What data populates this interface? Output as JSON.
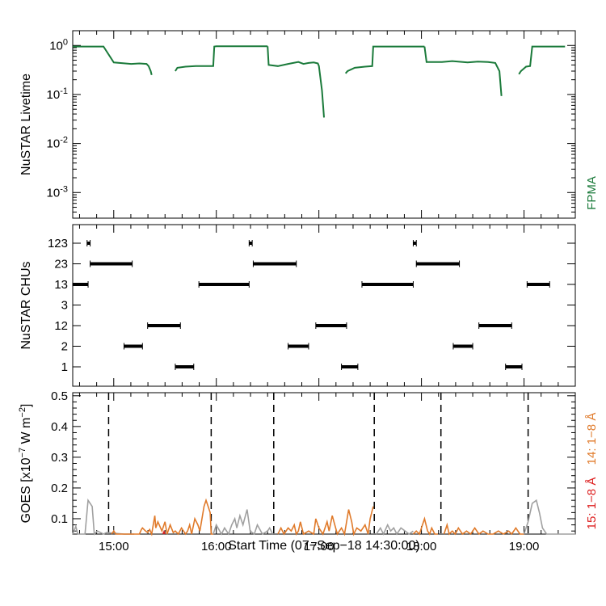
{
  "chart_data": [
    {
      "type": "line",
      "name": "livetime",
      "ylabel": "NuSTAR Livetime",
      "yscale": "log",
      "ylim": [
        0.0003,
        2
      ],
      "xlim": [
        14.6,
        19.5
      ],
      "yticks": [
        {
          "v": 1,
          "base": "10",
          "exp": "0"
        },
        {
          "v": 0.1,
          "base": "10",
          "exp": "-1"
        },
        {
          "v": 0.01,
          "base": "10",
          "exp": "-2"
        },
        {
          "v": 0.001,
          "base": "10",
          "exp": "-3"
        }
      ],
      "legend": "FPMA",
      "colors": {
        "series": "#1a7a3a"
      },
      "segments": [
        {
          "x": [
            14.6,
            14.9,
            14.9,
            15.0,
            15.17,
            15.25,
            15.32,
            15.34,
            15.36,
            15.37
          ],
          "y": [
            0.95,
            0.95,
            0.95,
            0.45,
            0.42,
            0.43,
            0.42,
            0.38,
            0.3,
            0.25
          ]
        },
        {
          "x": [
            15.6,
            15.62,
            15.7,
            15.8,
            15.9,
            15.97,
            15.98,
            16.0,
            16.4,
            16.5
          ],
          "y": [
            0.3,
            0.35,
            0.37,
            0.38,
            0.38,
            0.38,
            0.95,
            0.96,
            0.96,
            0.96
          ]
        },
        {
          "x": [
            16.5,
            16.51,
            16.6,
            16.7,
            16.8,
            16.85,
            16.9,
            16.95,
            16.99,
            17.0,
            17.03,
            17.05
          ],
          "y": [
            0.96,
            0.4,
            0.38,
            0.42,
            0.46,
            0.42,
            0.44,
            0.45,
            0.43,
            0.38,
            0.12,
            0.034
          ]
        },
        {
          "x": [
            17.26,
            17.28,
            17.35,
            17.45,
            17.52,
            17.53,
            17.6,
            18.0,
            18.03
          ],
          "y": [
            0.27,
            0.3,
            0.35,
            0.37,
            0.38,
            0.95,
            0.95,
            0.95,
            0.95
          ]
        },
        {
          "x": [
            18.03,
            18.05,
            18.2,
            18.3,
            18.45,
            18.55,
            18.65,
            18.72,
            18.76,
            18.78
          ],
          "y": [
            0.95,
            0.46,
            0.46,
            0.48,
            0.45,
            0.47,
            0.46,
            0.44,
            0.3,
            0.093
          ]
        },
        {
          "x": [
            18.95,
            18.97,
            19.02,
            19.06,
            19.08,
            19.1,
            19.4
          ],
          "y": [
            0.26,
            0.3,
            0.37,
            0.38,
            0.95,
            0.95,
            0.95
          ]
        }
      ]
    },
    {
      "type": "scatter",
      "name": "chus",
      "ylabel": "NuSTAR CHUs",
      "categories": [
        "1",
        "2",
        "12",
        "3",
        "13",
        "23",
        "123"
      ],
      "colors": {
        "series": "#000000"
      },
      "runs": [
        {
          "cat": "13",
          "x0": 14.6,
          "x1": 14.75
        },
        {
          "cat": "123",
          "x0": 14.74,
          "x1": 14.77
        },
        {
          "cat": "23",
          "x0": 14.77,
          "x1": 15.18
        },
        {
          "cat": "2",
          "x0": 15.1,
          "x1": 15.28
        },
        {
          "cat": "12",
          "x0": 15.33,
          "x1": 15.65
        },
        {
          "cat": "1",
          "x0": 15.6,
          "x1": 15.78
        },
        {
          "cat": "13",
          "x0": 15.83,
          "x1": 16.32
        },
        {
          "cat": "123",
          "x0": 16.32,
          "x1": 16.35
        },
        {
          "cat": "23",
          "x0": 16.36,
          "x1": 16.78
        },
        {
          "cat": "2",
          "x0": 16.7,
          "x1": 16.9
        },
        {
          "cat": "12",
          "x0": 16.97,
          "x1": 17.27
        },
        {
          "cat": "1",
          "x0": 17.22,
          "x1": 17.38
        },
        {
          "cat": "13",
          "x0": 17.42,
          "x1": 17.92
        },
        {
          "cat": "123",
          "x0": 17.92,
          "x1": 17.95
        },
        {
          "cat": "23",
          "x0": 17.95,
          "x1": 18.37
        },
        {
          "cat": "2",
          "x0": 18.31,
          "x1": 18.5
        },
        {
          "cat": "12",
          "x0": 18.56,
          "x1": 18.88
        },
        {
          "cat": "1",
          "x0": 18.82,
          "x1": 18.98
        },
        {
          "cat": "13",
          "x0": 19.03,
          "x1": 19.25
        }
      ]
    },
    {
      "type": "line",
      "name": "goes",
      "ylabel": "GOES [x10",
      "ylabel_exp": "−7",
      "ylabel_tail": " W m",
      "ylabel_exp2": "−2",
      "ylabel_close": "]",
      "ylim": [
        0.05,
        0.51
      ],
      "yticks": [
        "0.1",
        "0.2",
        "0.3",
        "0.4",
        "0.5"
      ],
      "legend": [
        "14: 1−8 Å",
        "15: 1−8 Å"
      ],
      "colors": {
        "goes14": "#e07a2a",
        "goes15": "#dd2020",
        "quiet": "#a0a0a0",
        "markers": "#000000"
      },
      "vlines": [
        14.95,
        15.95,
        16.56,
        17.54,
        18.19,
        19.04
      ],
      "series": [
        {
          "name": "quiet",
          "color": "#a0a0a0",
          "x": [
            14.6,
            14.63,
            14.65,
            14.67,
            14.72,
            14.75,
            14.79,
            14.81,
            14.84,
            14.9,
            14.93,
            15.1,
            15.2
          ],
          "y": [
            0.05,
            0.075,
            0.05,
            0.05,
            0.05,
            0.16,
            0.14,
            0.05,
            0.06,
            0.05,
            0.055,
            0.05,
            0.05
          ]
        },
        {
          "name": "goes14",
          "color": "#e07a2a",
          "x": [
            14.98,
            15.0,
            15.02,
            15.04,
            15.25,
            15.27,
            15.28,
            15.31,
            15.33,
            15.35,
            15.37,
            15.38,
            15.4,
            15.41,
            15.43,
            15.47,
            15.5,
            15.52,
            15.55,
            15.58,
            15.6,
            15.63,
            15.66,
            15.7,
            15.72,
            15.74,
            15.76,
            15.79,
            15.82,
            15.84,
            15.88,
            15.9,
            15.92,
            15.94,
            15.95,
            15.97
          ],
          "y": [
            0.05,
            0.06,
            0.05,
            0.05,
            0.05,
            0.065,
            0.07,
            0.06,
            0.055,
            0.065,
            0.05,
            0.07,
            0.11,
            0.07,
            0.09,
            0.06,
            0.09,
            0.05,
            0.08,
            0.055,
            0.06,
            0.05,
            0.07,
            0.05,
            0.06,
            0.08,
            0.05,
            0.1,
            0.08,
            0.06,
            0.14,
            0.16,
            0.14,
            0.12,
            0.05,
            0.05
          ]
        },
        {
          "name": "goes15",
          "color": "#dd2020",
          "x": [
            15.48,
            15.49,
            15.5
          ],
          "y": [
            0.05,
            0.058,
            0.05
          ]
        },
        {
          "name": "quiet",
          "color": "#a0a0a0",
          "x": [
            15.97,
            16.0,
            16.05,
            16.08,
            16.12,
            16.15,
            16.18,
            16.2,
            16.23,
            16.26,
            16.3,
            16.33,
            16.37,
            16.4,
            16.45,
            16.5,
            16.52,
            16.55
          ],
          "y": [
            0.05,
            0.08,
            0.05,
            0.07,
            0.05,
            0.08,
            0.1,
            0.07,
            0.11,
            0.08,
            0.13,
            0.06,
            0.05,
            0.08,
            0.05,
            0.06,
            0.07,
            0.05
          ]
        },
        {
          "name": "goes14",
          "color": "#e07a2a",
          "x": [
            16.6,
            16.63,
            16.66,
            16.7,
            16.73,
            16.76,
            16.78,
            16.8,
            16.82,
            16.85,
            16.9,
            16.95,
            16.97,
            17.0,
            17.04,
            17.08,
            17.1,
            17.13,
            17.18,
            17.22,
            17.25,
            17.29,
            17.32,
            17.34,
            17.37,
            17.41,
            17.45,
            17.48,
            17.5,
            17.53
          ],
          "y": [
            0.05,
            0.07,
            0.05,
            0.07,
            0.06,
            0.08,
            0.05,
            0.06,
            0.09,
            0.05,
            0.06,
            0.05,
            0.1,
            0.07,
            0.05,
            0.09,
            0.06,
            0.11,
            0.05,
            0.07,
            0.05,
            0.13,
            0.09,
            0.05,
            0.07,
            0.06,
            0.08,
            0.05,
            0.1,
            0.14
          ]
        },
        {
          "name": "quiet",
          "color": "#a0a0a0",
          "x": [
            17.56,
            17.6,
            17.63,
            17.67,
            17.7,
            17.73,
            17.76,
            17.8,
            17.84,
            17.88,
            17.92
          ],
          "y": [
            0.05,
            0.07,
            0.05,
            0.08,
            0.06,
            0.07,
            0.05,
            0.07,
            0.06,
            0.05,
            0.06
          ]
        },
        {
          "name": "goes14",
          "color": "#e07a2a",
          "x": [
            17.92,
            17.95,
            17.98,
            18.0,
            18.03,
            18.06,
            18.08,
            18.1,
            18.13,
            18.16
          ],
          "y": [
            0.05,
            0.06,
            0.05,
            0.07,
            0.1,
            0.06,
            0.05,
            0.07,
            0.05,
            0.05
          ]
        },
        {
          "name": "goes14",
          "color": "#e07a2a",
          "x": [
            18.22,
            18.25,
            18.27,
            18.3,
            18.33,
            18.36,
            18.4,
            18.44,
            18.48,
            18.52,
            18.56,
            18.6,
            18.65,
            18.7,
            18.75,
            18.8,
            18.85,
            18.88,
            18.92,
            18.96,
            19.0
          ],
          "y": [
            0.05,
            0.08,
            0.05,
            0.06,
            0.05,
            0.07,
            0.05,
            0.06,
            0.05,
            0.07,
            0.05,
            0.06,
            0.05,
            0.05,
            0.06,
            0.05,
            0.06,
            0.05,
            0.07,
            0.05,
            0.05
          ]
        },
        {
          "name": "quiet",
          "color": "#a0a0a0",
          "x": [
            19.0,
            19.04,
            19.08,
            19.12,
            19.15,
            19.18,
            19.22,
            19.3,
            19.4,
            19.5
          ],
          "y": [
            0.05,
            0.09,
            0.15,
            0.16,
            0.12,
            0.07,
            0.05,
            0.05,
            0.05,
            0.05
          ]
        }
      ]
    }
  ],
  "xaxis": {
    "label": "Start Time (07−Sep−18 14:30:00)",
    "ticks": [
      {
        "v": 15,
        "t": "15:00"
      },
      {
        "v": 16,
        "t": "16:00"
      },
      {
        "v": 17,
        "t": "17:00"
      },
      {
        "v": 18,
        "t": "18:00"
      },
      {
        "v": 19,
        "t": "19:00"
      }
    ]
  }
}
